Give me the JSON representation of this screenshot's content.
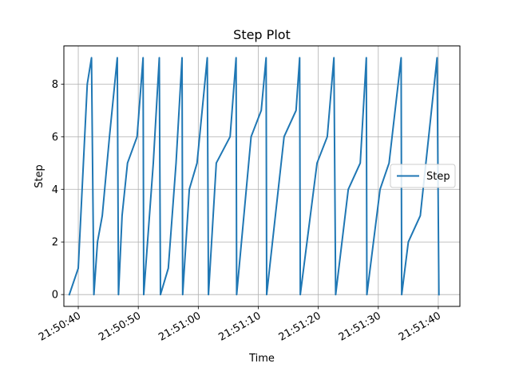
{
  "chart_data": {
    "type": "line",
    "title": "Step Plot",
    "xlabel": "Time",
    "ylabel": "Step",
    "x_unit": "time (HH:MM:SS)",
    "xlim": [
      "21:50:37.6",
      "21:51:43.6"
    ],
    "ylim": [
      -0.45,
      9.45
    ],
    "x_ticks": [
      "21:50:40",
      "21:50:50",
      "21:51:00",
      "21:51:10",
      "21:51:20",
      "21:51:30",
      "21:51:40"
    ],
    "y_ticks": [
      0,
      2,
      4,
      6,
      8
    ],
    "grid": true,
    "legend_position": "center-right",
    "series": [
      {
        "name": "Step",
        "color": "#1f77b4",
        "x": [
          "21:50:38.5",
          "21:50:40.0",
          "21:50:41.5",
          "21:50:42.2",
          "21:50:42.6",
          "21:50:43.2",
          "21:50:44.0",
          "21:50:45.2",
          "21:50:46.5",
          "21:50:46.7",
          "21:50:47.3",
          "21:50:48.2",
          "21:50:49.8",
          "21:50:50.8",
          "21:50:50.9",
          "21:50:52.5",
          "21:50:53.5",
          "21:50:53.7",
          "21:50:55.0",
          "21:50:56.3",
          "21:50:57.3",
          "21:50:57.4",
          "21:50:58.5",
          "21:50:59.8",
          "21:51:01.5",
          "21:51:01.7",
          "21:51:03.0",
          "21:51:05.3",
          "21:51:06.3",
          "21:51:06.4",
          "21:51:08.8",
          "21:51:10.5",
          "21:51:11.3",
          "21:51:11.4",
          "21:51:14.3",
          "21:51:16.3",
          "21:51:16.9",
          "21:51:17.0",
          "21:51:19.8",
          "21:51:21.5",
          "21:51:22.6",
          "21:51:22.9",
          "21:51:25.0",
          "21:51:27.0",
          "21:51:28.0",
          "21:51:28.1",
          "21:51:30.3",
          "21:51:31.8",
          "21:51:33.8",
          "21:51:33.9",
          "21:51:35.0",
          "21:51:37.0",
          "21:51:39.8",
          "21:51:40.1"
        ],
        "values": [
          0,
          1,
          8,
          9,
          0,
          2,
          3,
          6,
          9,
          0,
          3,
          5,
          6,
          9,
          0,
          5,
          9,
          0,
          1,
          5,
          9,
          0,
          4,
          5,
          9,
          0,
          5,
          6,
          9,
          0,
          6,
          7,
          9,
          0,
          6,
          7,
          9,
          0,
          5,
          6,
          9,
          0,
          4,
          5,
          9,
          0,
          4,
          5,
          9,
          0,
          2,
          3,
          9,
          0
        ]
      }
    ]
  }
}
